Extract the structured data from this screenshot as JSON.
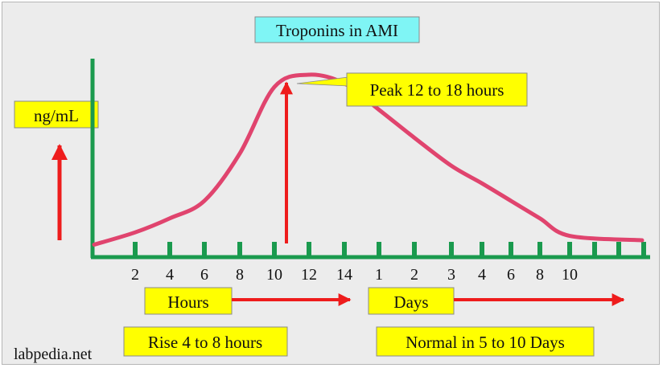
{
  "colors": {
    "background": "#ececec",
    "axis": "#1a9a4e",
    "curve": "#e0446e",
    "arrow": "#ee1c1c",
    "label_box": "#ffff00",
    "title_box": "#7ff5f5",
    "text": "#111111"
  },
  "chart_data": {
    "type": "line",
    "title": "Troponins in AMI",
    "ylabel": "ng/mL",
    "x_ticks": [
      {
        "label": "2",
        "unit": "hours"
      },
      {
        "label": "4",
        "unit": "hours"
      },
      {
        "label": "6",
        "unit": "hours"
      },
      {
        "label": "8",
        "unit": "hours"
      },
      {
        "label": "10",
        "unit": "hours"
      },
      {
        "label": "12",
        "unit": "hours"
      },
      {
        "label": "14",
        "unit": "hours"
      },
      {
        "label": "1",
        "unit": "days"
      },
      {
        "label": "2",
        "unit": "days"
      },
      {
        "label": "3",
        "unit": "days"
      },
      {
        "label": "4",
        "unit": "days"
      },
      {
        "label": "6",
        "unit": "days"
      },
      {
        "label": "8",
        "unit": "days"
      },
      {
        "label": "10",
        "unit": "days"
      }
    ],
    "series": [
      {
        "values": [
          {
            "x": 0,
            "y": 3
          },
          {
            "x": 2,
            "y": 10
          },
          {
            "x": 4,
            "y": 18
          },
          {
            "x": 6,
            "y": 28
          },
          {
            "x": 8,
            "y": 55
          },
          {
            "x": 10,
            "y": 93
          },
          {
            "x": 12,
            "y": 100
          },
          {
            "x": 14,
            "y": 95
          },
          {
            "x": "1 day",
            "y": 80
          },
          {
            "x": "2 days",
            "y": 64
          },
          {
            "x": "3 days",
            "y": 48
          },
          {
            "x": "4 days",
            "y": 38
          },
          {
            "x": "6 days",
            "y": 28
          },
          {
            "x": "8 days",
            "y": 18
          },
          {
            "x": "10 days",
            "y": 8
          }
        ]
      }
    ],
    "grid": false,
    "legend": "none"
  },
  "labels": {
    "hours": "Hours",
    "days": "Days",
    "peak": "Peak 12 to 18 hours",
    "rise": "Rise 4 to 8 hours",
    "normal": "Normal in 5 to 10 Days",
    "watermark": "labpedia.net"
  }
}
